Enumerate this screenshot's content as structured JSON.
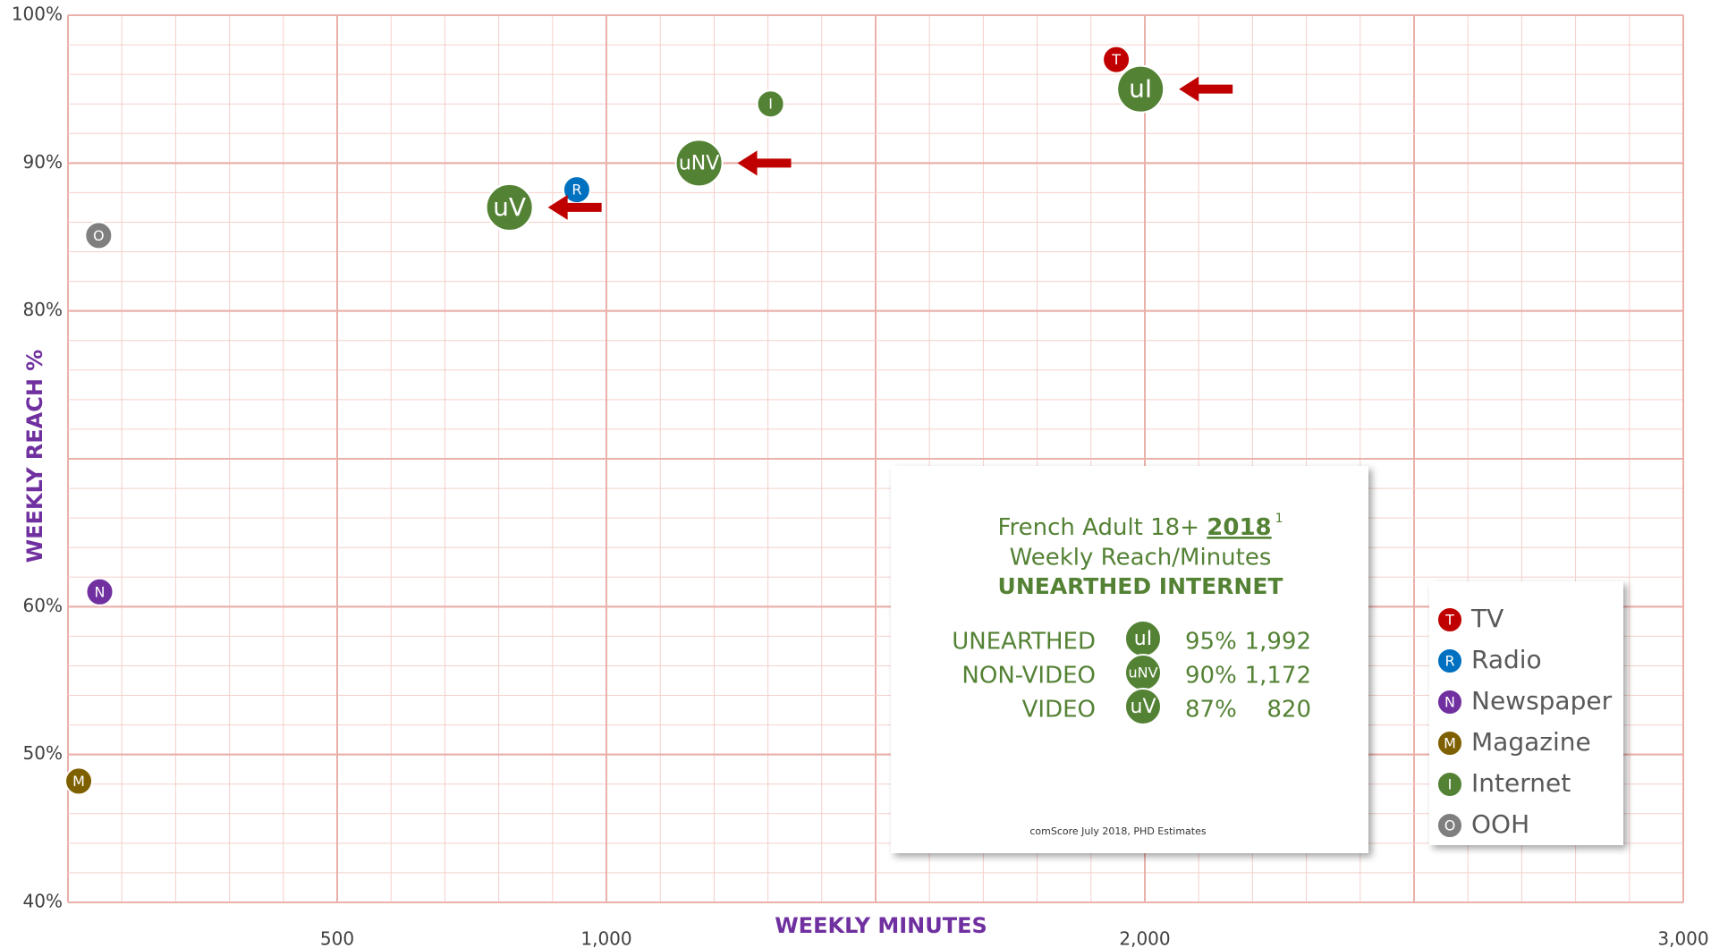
{
  "chart_data": {
    "type": "scatter",
    "xlabel": "WEEKLY MINUTES",
    "ylabel": "WEEKLY REACH %",
    "xlim": [
      0,
      3000
    ],
    "ylim": [
      40,
      100
    ],
    "xticks": [
      500,
      {
        "value": 1000,
        "label": "1,000"
      },
      {
        "value": 2000,
        "label": "2,000"
      },
      {
        "value": 3000,
        "label": "3,000"
      }
    ],
    "yticks": [
      {
        "value": 40,
        "label": "40%"
      },
      {
        "value": 50,
        "label": "50%"
      },
      {
        "value": 60,
        "label": "60%"
      },
      {
        "value": 80,
        "label": "80%"
      },
      {
        "value": 90,
        "label": "90%"
      },
      {
        "value": 100,
        "label": "100%"
      }
    ],
    "grid": true,
    "series": [
      {
        "name": "TV",
        "letter": "T",
        "color": "#c00000",
        "x": [
          1947
        ],
        "values": [
          97
        ]
      },
      {
        "name": "Radio",
        "letter": "R",
        "color": "#0070c0",
        "x": [
          945
        ],
        "values": [
          88.2
        ]
      },
      {
        "name": "Newspaper",
        "letter": "N",
        "color": "#7030a0",
        "x": [
          59
        ],
        "values": [
          61
        ]
      },
      {
        "name": "Magazine",
        "letter": "M",
        "color": "#7f6000",
        "x": [
          20
        ],
        "values": [
          48.2
        ]
      },
      {
        "name": "Internet",
        "letter": "I",
        "color": "#548235",
        "x": [
          1305
        ],
        "values": [
          94
        ]
      },
      {
        "name": "OOH",
        "letter": "O",
        "color": "#7f7f7f",
        "x": [
          57
        ],
        "values": [
          85.1
        ]
      }
    ],
    "unearthed": [
      {
        "name": "UNEARTHED",
        "letter": "uI",
        "color": "#548235",
        "x": [
          1992
        ],
        "values": [
          95
        ],
        "value_labels": [
          "95%"
        ],
        "x_labels": [
          "1,992"
        ]
      },
      {
        "name": "NON-VIDEO",
        "letter": "uNV",
        "color": "#548235",
        "x": [
          1172
        ],
        "values": [
          90
        ],
        "value_labels": [
          "90%"
        ],
        "x_labels": [
          "1,172"
        ]
      },
      {
        "name": "VIDEO",
        "letter": "uV",
        "color": "#548235",
        "x": [
          820
        ],
        "values": [
          87
        ],
        "value_labels": [
          "87%"
        ],
        "x_labels": [
          "820"
        ]
      }
    ],
    "callout": {
      "title_prefix": "French Adult 18+",
      "title_year": "2018",
      "footnote": "1",
      "subtitle": "Weekly Reach/Minutes",
      "heading": "UNEARTHED INTERNET",
      "source": "comScore July 2018, PHD Estimates"
    }
  }
}
